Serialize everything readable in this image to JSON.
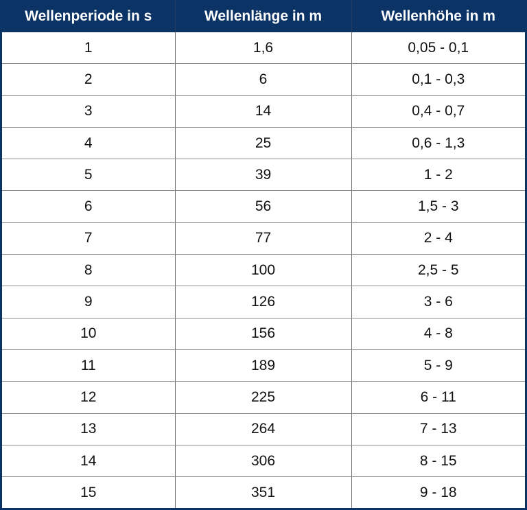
{
  "chart_data": {
    "type": "table",
    "columns": [
      "Wellenperiode in s",
      "Wellenlänge in m",
      "Wellenhöhe in m"
    ],
    "rows": [
      [
        "1",
        "1,6",
        "0,05 - 0,1"
      ],
      [
        "2",
        "6",
        "0,1 - 0,3"
      ],
      [
        "3",
        "14",
        "0,4 - 0,7"
      ],
      [
        "4",
        "25",
        "0,6 - 1,3"
      ],
      [
        "5",
        "39",
        "1 - 2"
      ],
      [
        "6",
        "56",
        "1,5 - 3"
      ],
      [
        "7",
        "77",
        "2 - 4"
      ],
      [
        "8",
        "100",
        "2,5 - 5"
      ],
      [
        "9",
        "126",
        "3 - 6"
      ],
      [
        "10",
        "156",
        "4 - 8"
      ],
      [
        "11",
        "189",
        "5 - 9"
      ],
      [
        "12",
        "225",
        "6 - 11"
      ],
      [
        "13",
        "264",
        "7 - 13"
      ],
      [
        "14",
        "306",
        "8 - 15"
      ],
      [
        "15",
        "351",
        "9 - 18"
      ]
    ],
    "colors": {
      "header_bg": "#0b3366",
      "header_text": "#ffffff"
    }
  }
}
